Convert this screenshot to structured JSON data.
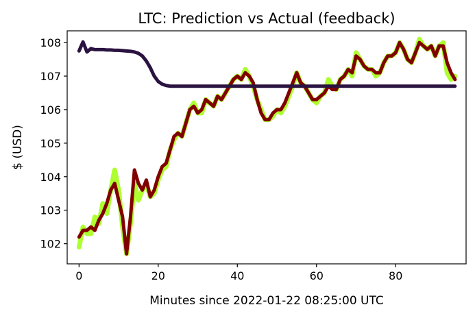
{
  "chart_data": {
    "type": "line",
    "title": "LTC: Prediction vs Actual (feedback)",
    "xlabel": "Minutes since 2022-01-22 08:25:00 UTC",
    "ylabel": "$ (USD)",
    "xlim": [
      -3,
      97.8
    ],
    "ylim": [
      101.4,
      108.35
    ],
    "xticks": [
      0,
      20,
      40,
      60,
      80
    ],
    "yticks": [
      102,
      103,
      104,
      105,
      106,
      107,
      108
    ],
    "grid": false,
    "legend": false,
    "series": [
      {
        "color": "#adff2f",
        "x": [
          0,
          1,
          2,
          3,
          4,
          5,
          6,
          7,
          8,
          9,
          10,
          11,
          12,
          13,
          14,
          15,
          16,
          17,
          18,
          19,
          20,
          21,
          22,
          23,
          24,
          25,
          26,
          27,
          28,
          29,
          30,
          31,
          32,
          33,
          34,
          35,
          36,
          37,
          38,
          39,
          40,
          41,
          42,
          43,
          44,
          45,
          46,
          47,
          48,
          49,
          50,
          51,
          52,
          53,
          54,
          55,
          56,
          57,
          58,
          59,
          60,
          61,
          62,
          63,
          64,
          65,
          66,
          67,
          68,
          69,
          70,
          71,
          72,
          73,
          74,
          75,
          76,
          77,
          78,
          79,
          80,
          81,
          82,
          83,
          84,
          85,
          86,
          87,
          88,
          89,
          90,
          91,
          92,
          93,
          94,
          95
        ],
        "values": [
          101.9,
          102.5,
          102.3,
          102.3,
          102.8,
          102.6,
          103.2,
          102.9,
          103.6,
          104.2,
          103.6,
          102.5,
          101.7,
          102.6,
          103.8,
          103.3,
          103.6,
          103.8,
          103.4,
          103.5,
          103.9,
          104.2,
          104.3,
          104.8,
          105.1,
          105.3,
          105.2,
          105.6,
          106.0,
          106.2,
          105.9,
          105.9,
          106.3,
          106.2,
          106.1,
          106.4,
          106.3,
          106.5,
          106.7,
          106.9,
          107.0,
          106.9,
          107.2,
          107.0,
          106.7,
          106.3,
          106.0,
          105.7,
          105.7,
          105.8,
          106.0,
          105.9,
          106.1,
          106.4,
          106.7,
          107.1,
          106.8,
          106.7,
          106.5,
          106.3,
          106.2,
          106.4,
          106.5,
          106.9,
          106.7,
          106.6,
          106.9,
          107.0,
          107.2,
          107.0,
          107.7,
          107.5,
          107.3,
          107.2,
          107.2,
          107.0,
          107.1,
          107.4,
          107.6,
          107.6,
          107.7,
          108.0,
          107.8,
          107.5,
          107.4,
          107.7,
          108.1,
          107.9,
          107.8,
          107.9,
          107.6,
          107.9,
          108.0,
          107.1,
          106.9,
          107.0
        ]
      },
      {
        "color": "#800000",
        "x": [
          0,
          1,
          2,
          3,
          4,
          5,
          6,
          7,
          8,
          9,
          10,
          11,
          12,
          13,
          14,
          15,
          16,
          17,
          18,
          19,
          20,
          21,
          22,
          23,
          24,
          25,
          26,
          27,
          28,
          29,
          30,
          31,
          32,
          33,
          34,
          35,
          36,
          37,
          38,
          39,
          40,
          41,
          42,
          43,
          44,
          45,
          46,
          47,
          48,
          49,
          50,
          51,
          52,
          53,
          54,
          55,
          56,
          57,
          58,
          59,
          60,
          61,
          62,
          63,
          64,
          65,
          66,
          67,
          68,
          69,
          70,
          71,
          72,
          73,
          74,
          75,
          76,
          77,
          78,
          79,
          80,
          81,
          82,
          83,
          84,
          85,
          86,
          87,
          88,
          89,
          90,
          91,
          92,
          93,
          94,
          95
        ],
        "values": [
          102.2,
          102.4,
          102.4,
          102.5,
          102.4,
          102.7,
          102.9,
          103.2,
          103.6,
          103.8,
          103.3,
          102.8,
          101.7,
          102.8,
          104.2,
          103.8,
          103.6,
          103.9,
          103.4,
          103.6,
          104.0,
          104.3,
          104.4,
          104.8,
          105.2,
          105.3,
          105.2,
          105.6,
          106.0,
          106.1,
          105.9,
          106.0,
          106.3,
          106.2,
          106.1,
          106.4,
          106.3,
          106.5,
          106.7,
          106.9,
          107.0,
          106.9,
          107.1,
          107.0,
          106.8,
          106.3,
          105.9,
          105.7,
          105.7,
          105.9,
          106.0,
          106.0,
          106.2,
          106.5,
          106.8,
          107.1,
          106.8,
          106.7,
          106.5,
          106.3,
          106.3,
          106.4,
          106.5,
          106.7,
          106.6,
          106.6,
          106.9,
          107.0,
          107.2,
          107.1,
          107.6,
          107.5,
          107.3,
          107.2,
          107.2,
          107.1,
          107.1,
          107.4,
          107.6,
          107.6,
          107.7,
          108.0,
          107.8,
          107.5,
          107.4,
          107.7,
          108.0,
          107.9,
          107.8,
          107.9,
          107.6,
          107.9,
          107.9,
          107.4,
          107.1,
          106.9
        ]
      },
      {
        "color": "#2b1341",
        "x": [
          0,
          1,
          2,
          3,
          4,
          5,
          6,
          7,
          8,
          9,
          10,
          11,
          12,
          13,
          14,
          15,
          16,
          17,
          18,
          19,
          20,
          21,
          22,
          23,
          24,
          25,
          26,
          27,
          28,
          29,
          30,
          31,
          32,
          33,
          34,
          35,
          36,
          37,
          38,
          39,
          40,
          41,
          42,
          43,
          44,
          45,
          46,
          47,
          48,
          49,
          50,
          51,
          52,
          53,
          54,
          55,
          56,
          57,
          58,
          59,
          60,
          61,
          62,
          63,
          64,
          65,
          66,
          67,
          68,
          69,
          70,
          71,
          72,
          73,
          74,
          75,
          76,
          77,
          78,
          79,
          80,
          81,
          82,
          83,
          84,
          85,
          86,
          87,
          88,
          89,
          90,
          91,
          92,
          93,
          94,
          95
        ],
        "values": [
          107.75,
          108.02,
          107.72,
          107.82,
          107.79,
          107.79,
          107.79,
          107.78,
          107.78,
          107.77,
          107.77,
          107.76,
          107.75,
          107.74,
          107.72,
          107.68,
          107.6,
          107.45,
          107.25,
          107.0,
          106.84,
          106.76,
          106.72,
          106.7,
          106.7,
          106.7,
          106.7,
          106.7,
          106.7,
          106.7,
          106.7,
          106.7,
          106.7,
          106.7,
          106.7,
          106.7,
          106.7,
          106.7,
          106.7,
          106.7,
          106.7,
          106.7,
          106.7,
          106.7,
          106.7,
          106.7,
          106.7,
          106.7,
          106.7,
          106.7,
          106.7,
          106.7,
          106.7,
          106.7,
          106.7,
          106.7,
          106.7,
          106.7,
          106.7,
          106.7,
          106.7,
          106.7,
          106.7,
          106.7,
          106.7,
          106.7,
          106.7,
          106.7,
          106.7,
          106.7,
          106.7,
          106.7,
          106.7,
          106.7,
          106.7,
          106.7,
          106.7,
          106.7,
          106.7,
          106.7,
          106.7,
          106.7,
          106.7,
          106.7,
          106.7,
          106.7,
          106.7,
          106.7,
          106.7,
          106.7,
          106.7,
          106.7,
          106.7,
          106.7,
          106.7,
          106.7
        ]
      }
    ]
  }
}
